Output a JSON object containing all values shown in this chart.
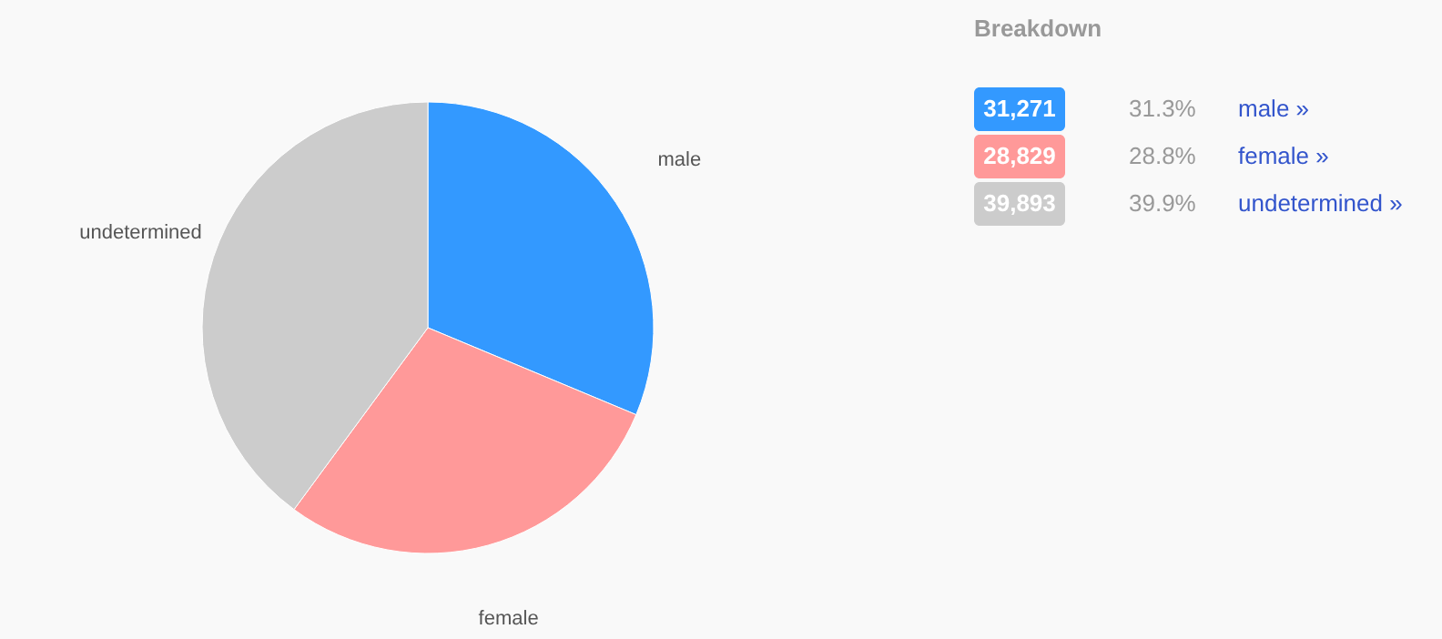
{
  "chart_data": {
    "type": "pie",
    "categories": [
      "male",
      "female",
      "undetermined"
    ],
    "values": [
      31.3,
      28.8,
      39.9
    ],
    "colors": [
      "#3399ff",
      "#ff9999",
      "#cccccc"
    ],
    "annotations": [
      "Breakdown",
      "31,271",
      "31.3%",
      "male »",
      "28,829",
      "28.8%",
      "female »",
      "39,893",
      "39.9%",
      "undetermined »"
    ]
  }
}
